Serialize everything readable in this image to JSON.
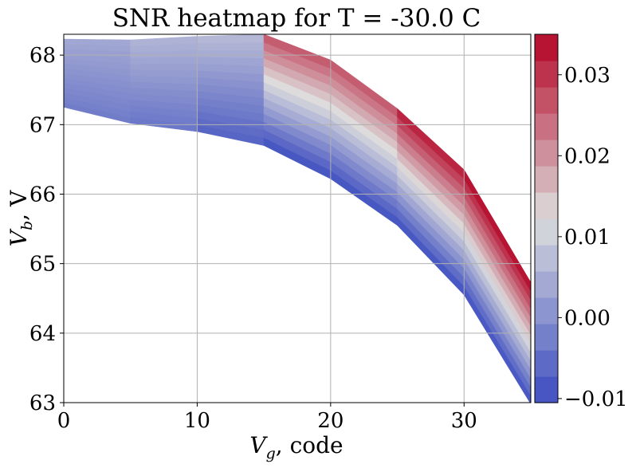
{
  "chart_data": {
    "type": "heatmap",
    "title": "SNR heatmap for T = -30.0 C",
    "xlabel": {
      "symbol": "V",
      "sub": "g",
      "unit": ", code"
    },
    "ylabel": {
      "symbol": "V",
      "sub": "b",
      "unit": ", V"
    },
    "xlim": [
      0,
      35
    ],
    "ylim": [
      63,
      68.3
    ],
    "x_ticks": [
      0,
      10,
      20,
      30
    ],
    "x_tick_labels": [
      "0",
      "10",
      "20",
      "30"
    ],
    "y_ticks": [
      63,
      64,
      65,
      66,
      67,
      68
    ],
    "y_tick_labels": [
      "63",
      "64",
      "65",
      "66",
      "67",
      "68"
    ],
    "grid": true,
    "colormap": "coolwarm",
    "color_low": "#3b4cc0",
    "color_mid": "#dddddd",
    "color_high": "#b40426",
    "colorbar": {
      "vmin": -0.0105,
      "vmax": 0.035,
      "ticks": [
        -0.01,
        0.0,
        0.01,
        0.02,
        0.03
      ],
      "tick_labels": [
        "−0.01",
        "0.00",
        "0.01",
        "0.02",
        "0.03"
      ]
    },
    "levels": 14,
    "columns": [
      {
        "x": 0,
        "vb_min": 67.25,
        "vb_max": 68.23,
        "snr_min": -0.003,
        "snr_max": 0.004
      },
      {
        "x": 5,
        "vb_min": 67.02,
        "vb_max": 68.22,
        "snr_min": -0.004,
        "snr_max": 0.006
      },
      {
        "x": 10,
        "vb_min": 66.9,
        "vb_max": 68.27,
        "snr_min": -0.007,
        "snr_max": 0.007
      },
      {
        "x": 15,
        "vb_min": 66.7,
        "vb_max": 68.3,
        "snr_min": -0.01,
        "snr_max": 0.027
      },
      {
        "x": 20,
        "vb_min": 66.22,
        "vb_max": 67.93,
        "snr_min": -0.01,
        "snr_max": 0.027
      },
      {
        "x": 25,
        "vb_min": 65.55,
        "vb_max": 67.23,
        "snr_min": -0.01,
        "snr_max": 0.033
      },
      {
        "x": 30,
        "vb_min": 64.55,
        "vb_max": 66.35,
        "snr_min": -0.01,
        "snr_max": 0.035
      },
      {
        "x": 35,
        "vb_min": 62.98,
        "vb_max": 64.73,
        "snr_min": -0.01,
        "snr_max": 0.035
      }
    ]
  }
}
